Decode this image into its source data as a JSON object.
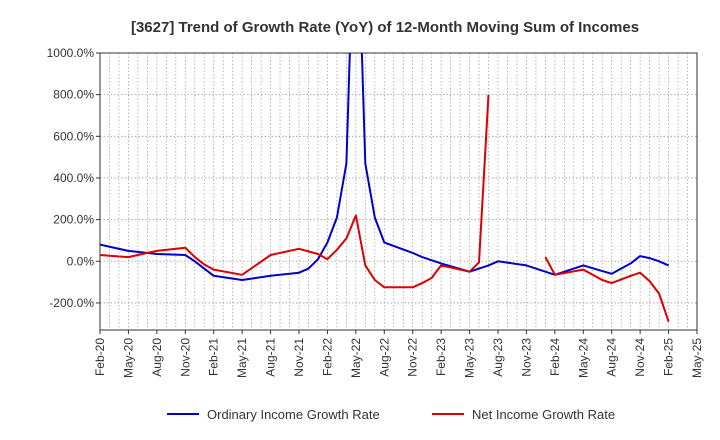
{
  "chart_data": {
    "type": "line",
    "title": "[3627]  Trend of Growth Rate (YoY) of 12-Month Moving Sum of Incomes",
    "xlabel": "",
    "ylabel": "",
    "ylim": [
      -330,
      1000
    ],
    "y_ticks": [
      "1000.0%",
      "800.0%",
      "600.0%",
      "400.0%",
      "200.0%",
      "0.0%",
      "-200.0%"
    ],
    "y_tick_values": [
      1000,
      800,
      600,
      400,
      200,
      0,
      -200
    ],
    "x_ticks": [
      "Feb-20",
      "May-20",
      "Aug-20",
      "Nov-20",
      "Feb-21",
      "May-21",
      "Aug-21",
      "Nov-21",
      "Feb-22",
      "May-22",
      "Aug-22",
      "Nov-22",
      "Feb-23",
      "May-23",
      "Aug-23",
      "Nov-23",
      "Feb-24",
      "May-24",
      "Aug-24",
      "Nov-24",
      "Feb-25",
      "May-25"
    ],
    "grid": true,
    "legend_position": "bottom",
    "series": [
      {
        "name": "Ordinary Income Growth Rate",
        "color": "#0000cc",
        "points": [
          [
            0,
            80
          ],
          [
            3,
            50
          ],
          [
            6,
            35
          ],
          [
            9,
            30
          ],
          [
            10,
            0
          ],
          [
            11,
            -35
          ],
          [
            12,
            -70
          ],
          [
            15,
            -90
          ],
          [
            18,
            -70
          ],
          [
            21,
            -55
          ],
          [
            22,
            -35
          ],
          [
            23,
            10
          ],
          [
            24,
            90
          ],
          [
            25,
            210
          ],
          [
            26,
            470
          ],
          [
            26.5,
            1200
          ],
          [
            27.5,
            1200
          ],
          [
            28,
            470
          ],
          [
            29,
            210
          ],
          [
            30,
            90
          ],
          [
            33,
            40
          ],
          [
            34,
            20
          ],
          [
            36,
            -10
          ],
          [
            39,
            -50
          ],
          [
            41,
            -20
          ],
          [
            42,
            0
          ],
          [
            45,
            -20
          ],
          [
            48,
            -65
          ],
          [
            51,
            -20
          ],
          [
            54,
            -60
          ],
          [
            56,
            -10
          ],
          [
            57,
            25
          ],
          [
            58,
            15
          ],
          [
            59,
            0
          ],
          [
            60,
            -20
          ]
        ]
      },
      {
        "name": "Net Income Growth Rate",
        "color": "#dd0000",
        "points": [
          [
            0,
            30
          ],
          [
            3,
            20
          ],
          [
            5,
            40
          ],
          [
            6,
            50
          ],
          [
            9,
            65
          ],
          [
            10,
            20
          ],
          [
            11,
            -15
          ],
          [
            12,
            -40
          ],
          [
            15,
            -65
          ],
          [
            18,
            30
          ],
          [
            21,
            60
          ],
          [
            23,
            35
          ],
          [
            24,
            10
          ],
          [
            25,
            55
          ],
          [
            26,
            110
          ],
          [
            27,
            220
          ],
          [
            28,
            -20
          ],
          [
            29,
            -90
          ],
          [
            30,
            -125
          ],
          [
            33,
            -125
          ],
          [
            34,
            -105
          ],
          [
            35,
            -80
          ],
          [
            36,
            -20
          ],
          [
            39,
            -50
          ],
          [
            40,
            -5
          ],
          [
            41,
            800
          ],
          null,
          [
            47,
            20
          ],
          [
            48,
            -65
          ],
          [
            51,
            -40
          ],
          [
            53,
            -90
          ],
          [
            54,
            -105
          ],
          [
            56,
            -70
          ],
          [
            57,
            -55
          ],
          [
            58,
            -95
          ],
          [
            59,
            -155
          ],
          [
            60,
            -290
          ]
        ]
      }
    ]
  }
}
